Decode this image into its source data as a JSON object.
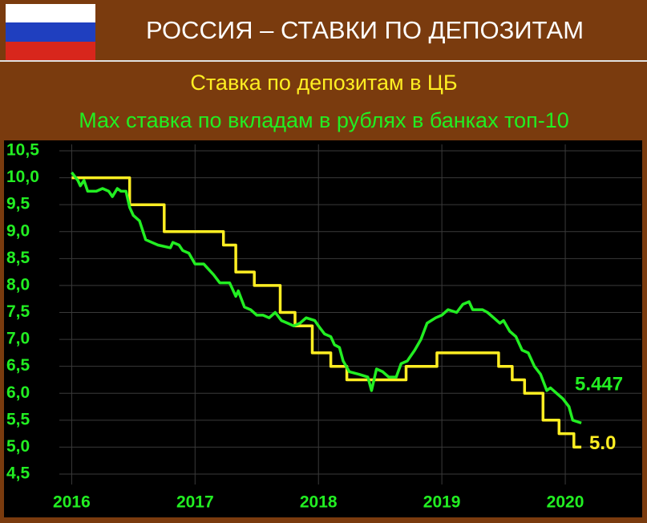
{
  "chart_data": {
    "type": "line",
    "title": "РОССИЯ – СТАВКИ ПО ДЕПОЗИТАМ",
    "xlim": [
      2015.9,
      2020.5
    ],
    "xticks": [
      2016,
      2017,
      2018,
      2019,
      2020
    ],
    "ylim": [
      4.5,
      10.5
    ],
    "yticks": [
      {
        "value": 4.5,
        "label": "4,5"
      },
      {
        "value": 5.0,
        "label": "5,0"
      },
      {
        "value": 5.5,
        "label": "5,5"
      },
      {
        "value": 6.0,
        "label": "6,0"
      },
      {
        "value": 6.5,
        "label": "6,5"
      },
      {
        "value": 7.0,
        "label": "7,0"
      },
      {
        "value": 7.5,
        "label": "7,5"
      },
      {
        "value": 8.0,
        "label": "8,0"
      },
      {
        "value": 8.5,
        "label": "8,5"
      },
      {
        "value": 9.0,
        "label": "9,0"
      },
      {
        "value": 9.5,
        "label": "9,5"
      },
      {
        "value": 10.0,
        "label": "10,0"
      },
      {
        "value": 10.5,
        "label": "10,5"
      }
    ],
    "grid": true,
    "series": [
      {
        "name": "Ставка по депозитам в ЦБ",
        "color": "#ffee22",
        "x": [
          2016.0,
          2016.47,
          2016.47,
          2016.75,
          2016.75,
          2017.23,
          2017.23,
          2017.33,
          2017.33,
          2017.48,
          2017.48,
          2017.69,
          2017.69,
          2017.81,
          2017.81,
          2017.95,
          2017.95,
          2018.1,
          2018.1,
          2018.23,
          2018.23,
          2018.71,
          2018.71,
          2018.96,
          2018.96,
          2019.46,
          2019.46,
          2019.57,
          2019.57,
          2019.67,
          2019.67,
          2019.82,
          2019.82,
          2019.95,
          2019.95,
          2020.07,
          2020.07,
          2020.13
        ],
        "values": [
          10.0,
          10.0,
          9.5,
          9.5,
          9.0,
          9.0,
          8.75,
          8.75,
          8.25,
          8.25,
          8.0,
          8.0,
          7.5,
          7.5,
          7.25,
          7.25,
          6.75,
          6.75,
          6.5,
          6.5,
          6.25,
          6.25,
          6.5,
          6.5,
          6.75,
          6.75,
          6.5,
          6.5,
          6.25,
          6.25,
          6.0,
          6.0,
          5.5,
          5.5,
          5.25,
          5.25,
          5.0,
          5.0
        ],
        "value_labels": [
          null,
          null,
          null,
          null,
          null,
          null,
          null,
          null,
          null,
          null,
          null,
          null,
          null,
          null,
          null,
          null,
          null,
          null,
          null,
          null,
          null,
          null,
          null,
          null,
          null,
          null,
          null,
          null,
          null,
          null,
          null,
          null,
          null,
          null,
          null,
          null,
          null,
          "5.0"
        ]
      },
      {
        "name": "Мах ставка по вкладам в рублях в банках топ-10",
        "color": "#22ee22",
        "x": [
          2016.0,
          2016.05,
          2016.07,
          2016.1,
          2016.13,
          2016.2,
          2016.25,
          2016.3,
          2016.33,
          2016.37,
          2016.4,
          2016.44,
          2016.47,
          2016.5,
          2016.55,
          2016.6,
          2016.65,
          2016.7,
          2016.8,
          2016.82,
          2016.87,
          2016.9,
          2016.95,
          2017.0,
          2017.07,
          2017.15,
          2017.2,
          2017.28,
          2017.3,
          2017.33,
          2017.35,
          2017.4,
          2017.45,
          2017.5,
          2017.55,
          2017.6,
          2017.65,
          2017.7,
          2017.75,
          2017.8,
          2017.85,
          2017.9,
          2017.97,
          2018.0,
          2018.05,
          2018.1,
          2018.13,
          2018.17,
          2018.2,
          2018.25,
          2018.33,
          2018.4,
          2018.43,
          2018.47,
          2018.52,
          2018.57,
          2018.63,
          2018.67,
          2018.72,
          2018.78,
          2018.83,
          2018.88,
          2018.95,
          2019.0,
          2019.05,
          2019.12,
          2019.17,
          2019.22,
          2019.25,
          2019.33,
          2019.37,
          2019.42,
          2019.47,
          2019.5,
          2019.55,
          2019.6,
          2019.65,
          2019.7,
          2019.75,
          2019.8,
          2019.85,
          2019.88,
          2019.93,
          2019.98,
          2020.03,
          2020.06,
          2020.13
        ],
        "values": [
          10.1,
          9.95,
          9.85,
          9.95,
          9.75,
          9.75,
          9.8,
          9.75,
          9.65,
          9.8,
          9.75,
          9.75,
          9.45,
          9.3,
          9.2,
          8.85,
          8.8,
          8.75,
          8.7,
          8.8,
          8.75,
          8.65,
          8.6,
          8.4,
          8.4,
          8.2,
          8.05,
          8.05,
          7.95,
          7.8,
          7.9,
          7.6,
          7.55,
          7.45,
          7.45,
          7.4,
          7.5,
          7.35,
          7.3,
          7.25,
          7.3,
          7.4,
          7.35,
          7.25,
          7.1,
          7.05,
          6.9,
          6.85,
          6.6,
          6.4,
          6.35,
          6.3,
          6.05,
          6.45,
          6.4,
          6.3,
          6.3,
          6.55,
          6.6,
          6.8,
          7.0,
          7.3,
          7.4,
          7.45,
          7.55,
          7.5,
          7.65,
          7.7,
          7.55,
          7.55,
          7.5,
          7.4,
          7.3,
          7.35,
          7.15,
          7.05,
          6.8,
          6.75,
          6.5,
          6.35,
          6.05,
          6.1,
          6.0,
          5.9,
          5.75,
          5.5,
          5.447
        ]
      }
    ]
  }
}
